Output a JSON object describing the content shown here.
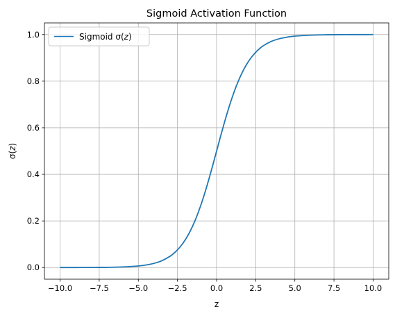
{
  "chart_data": {
    "type": "line",
    "title": "Sigmoid Activation Function",
    "xlabel": "z",
    "ylabel": {
      "prefix": "σ(",
      "var": "z",
      "suffix": ")"
    },
    "xlim": [
      -11.0,
      11.0
    ],
    "ylim": [
      -0.05,
      1.05
    ],
    "xticks": [
      -10.0,
      -7.5,
      -5.0,
      -2.5,
      0.0,
      2.5,
      5.0,
      7.5,
      10.0
    ],
    "xtick_labels": [
      "−10.0",
      "−7.5",
      "−5.0",
      "−2.5",
      "0.0",
      "2.5",
      "5.0",
      "7.5",
      "10.0"
    ],
    "yticks": [
      0.0,
      0.2,
      0.4,
      0.6,
      0.8,
      1.0
    ],
    "ytick_labels": [
      "0.0",
      "0.2",
      "0.4",
      "0.6",
      "0.8",
      "1.0"
    ],
    "grid": true,
    "legend_placement": "top-left",
    "series": [
      {
        "name": {
          "prefix": "Sigmoid ",
          "sym": "σ(",
          "var": "z",
          "suffix": ")"
        },
        "color": "#1f77b4",
        "x": [
          -10,
          -9,
          -8,
          -7,
          -6,
          -5,
          -4.5,
          -4,
          -3.5,
          -3,
          -2.75,
          -2.5,
          -2.25,
          -2,
          -1.75,
          -1.5,
          -1.25,
          -1,
          -0.75,
          -0.5,
          -0.25,
          0,
          0.25,
          0.5,
          0.75,
          1,
          1.25,
          1.5,
          1.75,
          2,
          2.25,
          2.5,
          2.75,
          3,
          3.5,
          4,
          4.5,
          5,
          6,
          7,
          8,
          9,
          10
        ],
        "y": [
          4.54e-05,
          0.0001234,
          0.0003354,
          0.000911,
          0.002473,
          0.006693,
          0.01099,
          0.01799,
          0.02931,
          0.04743,
          0.06006,
          0.07586,
          0.09534,
          0.1192,
          0.148,
          0.1824,
          0.2227,
          0.2689,
          0.3208,
          0.3775,
          0.4378,
          0.5,
          0.5622,
          0.6225,
          0.6792,
          0.7311,
          0.7773,
          0.8176,
          0.852,
          0.8808,
          0.9047,
          0.9241,
          0.9399,
          0.9526,
          0.9707,
          0.982,
          0.989,
          0.9933,
          0.9975,
          0.9991,
          0.9997,
          0.9999,
          1.0
        ]
      }
    ]
  }
}
